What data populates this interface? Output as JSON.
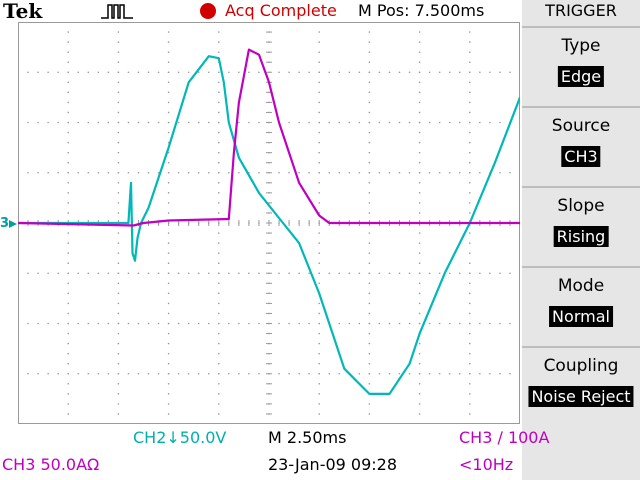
{
  "header": {
    "brand": "Tek",
    "acquisition_status": "Acq Complete",
    "position": "M Pos: 7.500ms"
  },
  "side_menu": {
    "title": "TRIGGER",
    "items": [
      {
        "label": "Type",
        "value": "Edge"
      },
      {
        "label": "Source",
        "value": "CH3"
      },
      {
        "label": "Slope",
        "value": "Rising"
      },
      {
        "label": "Mode",
        "value": "Normal"
      },
      {
        "label": "Coupling",
        "value": "Noise Reject"
      }
    ]
  },
  "status": {
    "ch2_scale": "CH2↓50.0V",
    "timebase": "M 2.50ms",
    "trigger_info": "CH3 ∕ 100A",
    "ch3_scale": "CH3  50.0AΩ",
    "datetime": "23-Jan-09 09:28",
    "frequency": "<10Hz"
  },
  "markers": {
    "ch3_ground": "3"
  },
  "colors": {
    "ch2": "#00b8b8",
    "ch3": "#c000c0",
    "grid": "#9a9a9a",
    "acq": "#d00000"
  },
  "chart_data": {
    "type": "line",
    "title": "",
    "xlabel": "",
    "ylabel": "",
    "xlim": [
      0,
      10
    ],
    "ylim": [
      -4,
      4
    ],
    "grid": true,
    "series": [
      {
        "name": "",
        "color": "#00b8b8",
        "x": [
          0,
          2.2,
          2.25,
          2.28,
          2.33,
          2.38,
          2.45,
          2.6,
          3.0,
          3.4,
          3.8,
          4.0,
          4.1,
          4.2,
          4.4,
          4.8,
          5.2,
          5.6,
          6.0,
          6.5,
          7.0,
          7.4,
          7.8,
          8.0,
          8.5,
          9.0,
          9.5,
          10.0
        ],
        "y": [
          0.0,
          0.0,
          0.8,
          -0.6,
          -0.75,
          -0.3,
          0.0,
          0.3,
          1.5,
          2.8,
          3.32,
          3.28,
          2.8,
          2.0,
          1.3,
          0.6,
          0.1,
          -0.4,
          -1.4,
          -2.9,
          -3.4,
          -3.4,
          -2.8,
          -2.2,
          -1.0,
          0.0,
          1.2,
          2.5
        ]
      },
      {
        "name": "",
        "color": "#c000c0",
        "x": [
          0,
          2.3,
          2.5,
          3.0,
          4.2,
          4.3,
          4.4,
          4.6,
          4.8,
          5.0,
          5.2,
          5.6,
          6.0,
          6.2,
          7.0,
          8.0,
          10.0
        ],
        "y": [
          0.0,
          -0.05,
          0.0,
          0.05,
          0.08,
          1.4,
          2.4,
          3.45,
          3.35,
          2.8,
          2.0,
          0.8,
          0.15,
          0.0,
          0.0,
          0.0,
          0.0
        ]
      }
    ]
  }
}
